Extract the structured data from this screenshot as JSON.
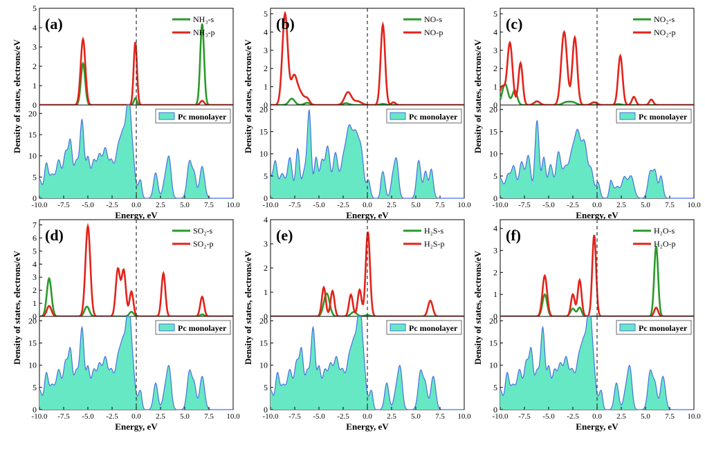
{
  "figure": {
    "ylabel": "Density of states, electrons/eV",
    "xlabel": "Energy, eV",
    "x_ticks": [
      "-10.0",
      "-7.5",
      "-5.0",
      "-2.5",
      "0.0",
      "2.5",
      "5.0",
      "7.5",
      "10.0"
    ],
    "fermi_level_ev": 0.0,
    "colors": {
      "s": "#2a9a2a",
      "p": "#e2231a",
      "mono_fill": "#66e8c4",
      "mono_line": "#4a6fe0",
      "fermi": "#333333"
    }
  },
  "chart_data": [
    {
      "type": "line",
      "label": "(a)",
      "xlim": [
        -10,
        10
      ],
      "top": {
        "ylim": [
          0,
          5
        ],
        "yticks": [
          "0",
          "1",
          "2",
          "3",
          "4",
          "5"
        ],
        "legend": [
          "NH₃-s",
          "NH₃-p"
        ],
        "s_peaks": [
          [
            -5.5,
            2.15,
            0.22
          ],
          [
            -0.1,
            0.35,
            0.15
          ],
          [
            6.8,
            4.2,
            0.2
          ]
        ],
        "p_peaks": [
          [
            -5.5,
            3.4,
            0.24
          ],
          [
            -0.1,
            3.25,
            0.17
          ],
          [
            6.8,
            0.22,
            0.2
          ]
        ]
      },
      "bottom": {
        "ylim": [
          0,
          22
        ],
        "yticks": [
          "0",
          "5",
          "10",
          "15",
          "20"
        ],
        "legend": "Pc monolayer",
        "peaks": "pc_a"
      }
    },
    {
      "type": "line",
      "label": "(b)",
      "xlim": [
        -10,
        10
      ],
      "top": {
        "ylim": [
          0,
          5.3
        ],
        "yticks": [
          "0",
          "1",
          "2",
          "3",
          "4",
          "5"
        ],
        "legend": [
          "NO-s",
          "NO-p"
        ],
        "s_peaks": [
          [
            -7.8,
            0.35,
            0.3
          ],
          [
            -6.2,
            0.12,
            0.3
          ],
          [
            -2.2,
            0.1,
            0.3
          ],
          [
            1.6,
            0.06,
            0.3
          ]
        ],
        "p_peaks": [
          [
            -8.5,
            5.0,
            0.28
          ],
          [
            -7.6,
            1.4,
            0.3
          ],
          [
            -7.0,
            0.7,
            0.4
          ],
          [
            -6.2,
            0.3,
            0.25
          ],
          [
            -2.0,
            0.7,
            0.35
          ],
          [
            -1.0,
            0.2,
            0.4
          ],
          [
            1.6,
            4.4,
            0.23
          ],
          [
            2.7,
            0.15,
            0.2
          ]
        ]
      },
      "bottom": {
        "ylim": [
          0,
          21
        ],
        "yticks": [
          "0",
          "5",
          "10",
          "15",
          "20"
        ],
        "legend": "Pc monolayer",
        "peaks": "pc_b"
      }
    },
    {
      "type": "line",
      "label": "(c)",
      "xlim": [
        -10,
        10
      ],
      "top": {
        "ylim": [
          0,
          5.3
        ],
        "yticks": [
          "0",
          "1",
          "2",
          "3",
          "4",
          "5"
        ],
        "legend": [
          "NO₂-s",
          "NO₂-p"
        ],
        "s_peaks": [
          [
            -9.5,
            1.15,
            0.3
          ],
          [
            -8.5,
            0.8,
            0.25
          ],
          [
            -3.2,
            0.15,
            0.35
          ],
          [
            -2.5,
            0.15,
            0.35
          ],
          [
            2.2,
            0.05,
            0.3
          ]
        ],
        "p_peaks": [
          [
            -9.8,
            1.0,
            0.28
          ],
          [
            -9.0,
            3.4,
            0.27
          ],
          [
            -7.9,
            2.3,
            0.22
          ],
          [
            -6.2,
            0.2,
            0.3
          ],
          [
            -3.4,
            4.0,
            0.3
          ],
          [
            -2.3,
            3.7,
            0.25
          ],
          [
            -0.3,
            0.15,
            0.3
          ],
          [
            2.4,
            2.7,
            0.23
          ],
          [
            3.8,
            0.45,
            0.2
          ],
          [
            5.6,
            0.3,
            0.2
          ]
        ]
      },
      "bottom": {
        "ylim": [
          0,
          21
        ],
        "yticks": [
          "0",
          "5",
          "10",
          "15",
          "20"
        ],
        "legend": "Pc monolayer",
        "peaks": "pc_c"
      }
    },
    {
      "type": "line",
      "label": "(d)",
      "xlim": [
        -10,
        10
      ],
      "top": {
        "ylim": [
          0,
          7.4
        ],
        "yticks": [
          "0",
          "1",
          "2",
          "3",
          "4",
          "5",
          "6",
          "7"
        ],
        "legend": [
          "SO₂-s",
          "SO₂-p"
        ],
        "s_peaks": [
          [
            -9.0,
            2.9,
            0.24
          ],
          [
            -5.1,
            0.75,
            0.25
          ],
          [
            -0.5,
            0.35,
            0.22
          ],
          [
            6.8,
            0.15,
            0.2
          ]
        ],
        "p_peaks": [
          [
            -9.0,
            0.8,
            0.24
          ],
          [
            -5.0,
            6.9,
            0.25
          ],
          [
            -1.9,
            3.6,
            0.22
          ],
          [
            -1.3,
            3.5,
            0.22
          ],
          [
            -0.5,
            1.9,
            0.2
          ],
          [
            2.8,
            3.3,
            0.2
          ],
          [
            6.8,
            1.5,
            0.2
          ]
        ]
      },
      "bottom": {
        "ylim": [
          0,
          21
        ],
        "yticks": [
          "0",
          "5",
          "10",
          "15",
          "20"
        ],
        "legend": "Pc monolayer",
        "peaks": "pc_a"
      }
    },
    {
      "type": "line",
      "label": "(e)",
      "xlim": [
        -10,
        10
      ],
      "top": {
        "ylim": [
          0,
          4
        ],
        "yticks": [
          "0",
          "1",
          "2",
          "3",
          "4"
        ],
        "legend": [
          "H₂S-s",
          "H₂S-p"
        ],
        "s_peaks": [
          [
            -4.2,
            0.95,
            0.3
          ],
          [
            -1.4,
            0.18,
            0.3
          ],
          [
            0.0,
            0.05,
            0.3
          ]
        ],
        "p_peaks": [
          [
            -4.5,
            1.2,
            0.2
          ],
          [
            -3.6,
            1.05,
            0.2
          ],
          [
            -1.7,
            0.9,
            0.2
          ],
          [
            -0.8,
            1.1,
            0.2
          ],
          [
            0.05,
            3.5,
            0.22
          ],
          [
            6.5,
            0.65,
            0.24
          ]
        ]
      },
      "bottom": {
        "ylim": [
          0,
          21
        ],
        "yticks": [
          "0",
          "5",
          "10",
          "15",
          "20"
        ],
        "legend": "Pc monolayer",
        "peaks": "pc_a"
      }
    },
    {
      "type": "line",
      "label": "(f)",
      "xlim": [
        -10,
        10
      ],
      "top": {
        "ylim": [
          0,
          4.4
        ],
        "yticks": [
          "0",
          "1",
          "2",
          "3",
          "4"
        ],
        "legend": [
          "H₂O-s",
          "H₂O-p"
        ],
        "s_peaks": [
          [
            -5.4,
            1.0,
            0.24
          ],
          [
            -2.5,
            0.35,
            0.25
          ],
          [
            -1.8,
            0.4,
            0.2
          ],
          [
            6.1,
            3.2,
            0.2
          ]
        ],
        "p_peaks": [
          [
            -5.4,
            1.85,
            0.24
          ],
          [
            -2.5,
            1.0,
            0.2
          ],
          [
            -1.8,
            1.65,
            0.2
          ],
          [
            -0.3,
            3.7,
            0.2
          ],
          [
            6.1,
            0.4,
            0.2
          ]
        ]
      },
      "bottom": {
        "ylim": [
          0,
          21
        ],
        "yticks": [
          "0",
          "5",
          "10",
          "15",
          "20"
        ],
        "legend": "Pc monolayer",
        "peaks": "pc_a"
      }
    }
  ],
  "pc_dos": {
    "pc_a": [
      [
        -10,
        4.5,
        0.25
      ],
      [
        -9.3,
        7.5,
        0.2
      ],
      [
        -8.7,
        5.5,
        0.3
      ],
      [
        -8.0,
        8.5,
        0.25
      ],
      [
        -7.3,
        10.5,
        0.25
      ],
      [
        -6.8,
        12.0,
        0.2
      ],
      [
        -6.2,
        8.5,
        0.25
      ],
      [
        -5.6,
        18.0,
        0.22
      ],
      [
        -5.0,
        9.0,
        0.2
      ],
      [
        -4.4,
        8.5,
        0.25
      ],
      [
        -3.8,
        9.5,
        0.25
      ],
      [
        -3.2,
        11.0,
        0.25
      ],
      [
        -2.6,
        8.0,
        0.25
      ],
      [
        -1.9,
        10.5,
        0.3
      ],
      [
        -1.3,
        14.0,
        0.3
      ],
      [
        -0.8,
        18.5,
        0.22
      ],
      [
        -0.4,
        10.0,
        0.25
      ],
      [
        0.4,
        4.3,
        0.22
      ],
      [
        2.0,
        6.0,
        0.22
      ],
      [
        3.0,
        4.5,
        0.25
      ],
      [
        3.4,
        8.5,
        0.22
      ],
      [
        5.5,
        8.7,
        0.25
      ],
      [
        6.0,
        5.0,
        0.2
      ],
      [
        6.8,
        7.5,
        0.25
      ]
    ],
    "pc_b": [
      [
        -10,
        4.5,
        0.25
      ],
      [
        -9.5,
        7.5,
        0.2
      ],
      [
        -8.8,
        5.5,
        0.3
      ],
      [
        -8.0,
        9.0,
        0.25
      ],
      [
        -7.2,
        11.0,
        0.2
      ],
      [
        -6.5,
        6.0,
        0.25
      ],
      [
        -6.0,
        19.0,
        0.2
      ],
      [
        -5.3,
        9.0,
        0.2
      ],
      [
        -4.7,
        8.0,
        0.22
      ],
      [
        -4.1,
        11.5,
        0.25
      ],
      [
        -3.3,
        10.0,
        0.25
      ],
      [
        -2.5,
        8.0,
        0.3
      ],
      [
        -1.9,
        13.5,
        0.3
      ],
      [
        -1.2,
        14.0,
        0.35
      ],
      [
        -0.6,
        8.0,
        0.25
      ],
      [
        0.1,
        4.0,
        0.2
      ],
      [
        1.6,
        6.0,
        0.22
      ],
      [
        3.0,
        8.5,
        0.22
      ],
      [
        2.6,
        4.0,
        0.2
      ],
      [
        5.3,
        8.5,
        0.22
      ],
      [
        6.0,
        6.0,
        0.2
      ],
      [
        6.6,
        6.5,
        0.2
      ]
    ],
    "pc_c": [
      [
        -10,
        4.5,
        0.3
      ],
      [
        -9.2,
        5.0,
        0.25
      ],
      [
        -8.6,
        7.0,
        0.25
      ],
      [
        -7.8,
        8.0,
        0.25
      ],
      [
        -7.1,
        9.5,
        0.25
      ],
      [
        -6.2,
        17.5,
        0.22
      ],
      [
        -5.5,
        9.0,
        0.2
      ],
      [
        -4.8,
        7.5,
        0.25
      ],
      [
        -4.0,
        10.0,
        0.25
      ],
      [
        -3.3,
        6.5,
        0.3
      ],
      [
        -2.6,
        9.0,
        0.3
      ],
      [
        -2.0,
        13.5,
        0.3
      ],
      [
        -1.3,
        12.0,
        0.3
      ],
      [
        -0.6,
        6.0,
        0.25
      ],
      [
        0.1,
        3.5,
        0.2
      ],
      [
        1.4,
        4.0,
        0.25
      ],
      [
        2.1,
        2.5,
        0.25
      ],
      [
        2.8,
        4.5,
        0.25
      ],
      [
        3.5,
        5.0,
        0.3
      ],
      [
        5.5,
        6.0,
        0.25
      ],
      [
        6.0,
        5.5,
        0.2
      ],
      [
        6.6,
        5.0,
        0.2
      ]
    ]
  }
}
